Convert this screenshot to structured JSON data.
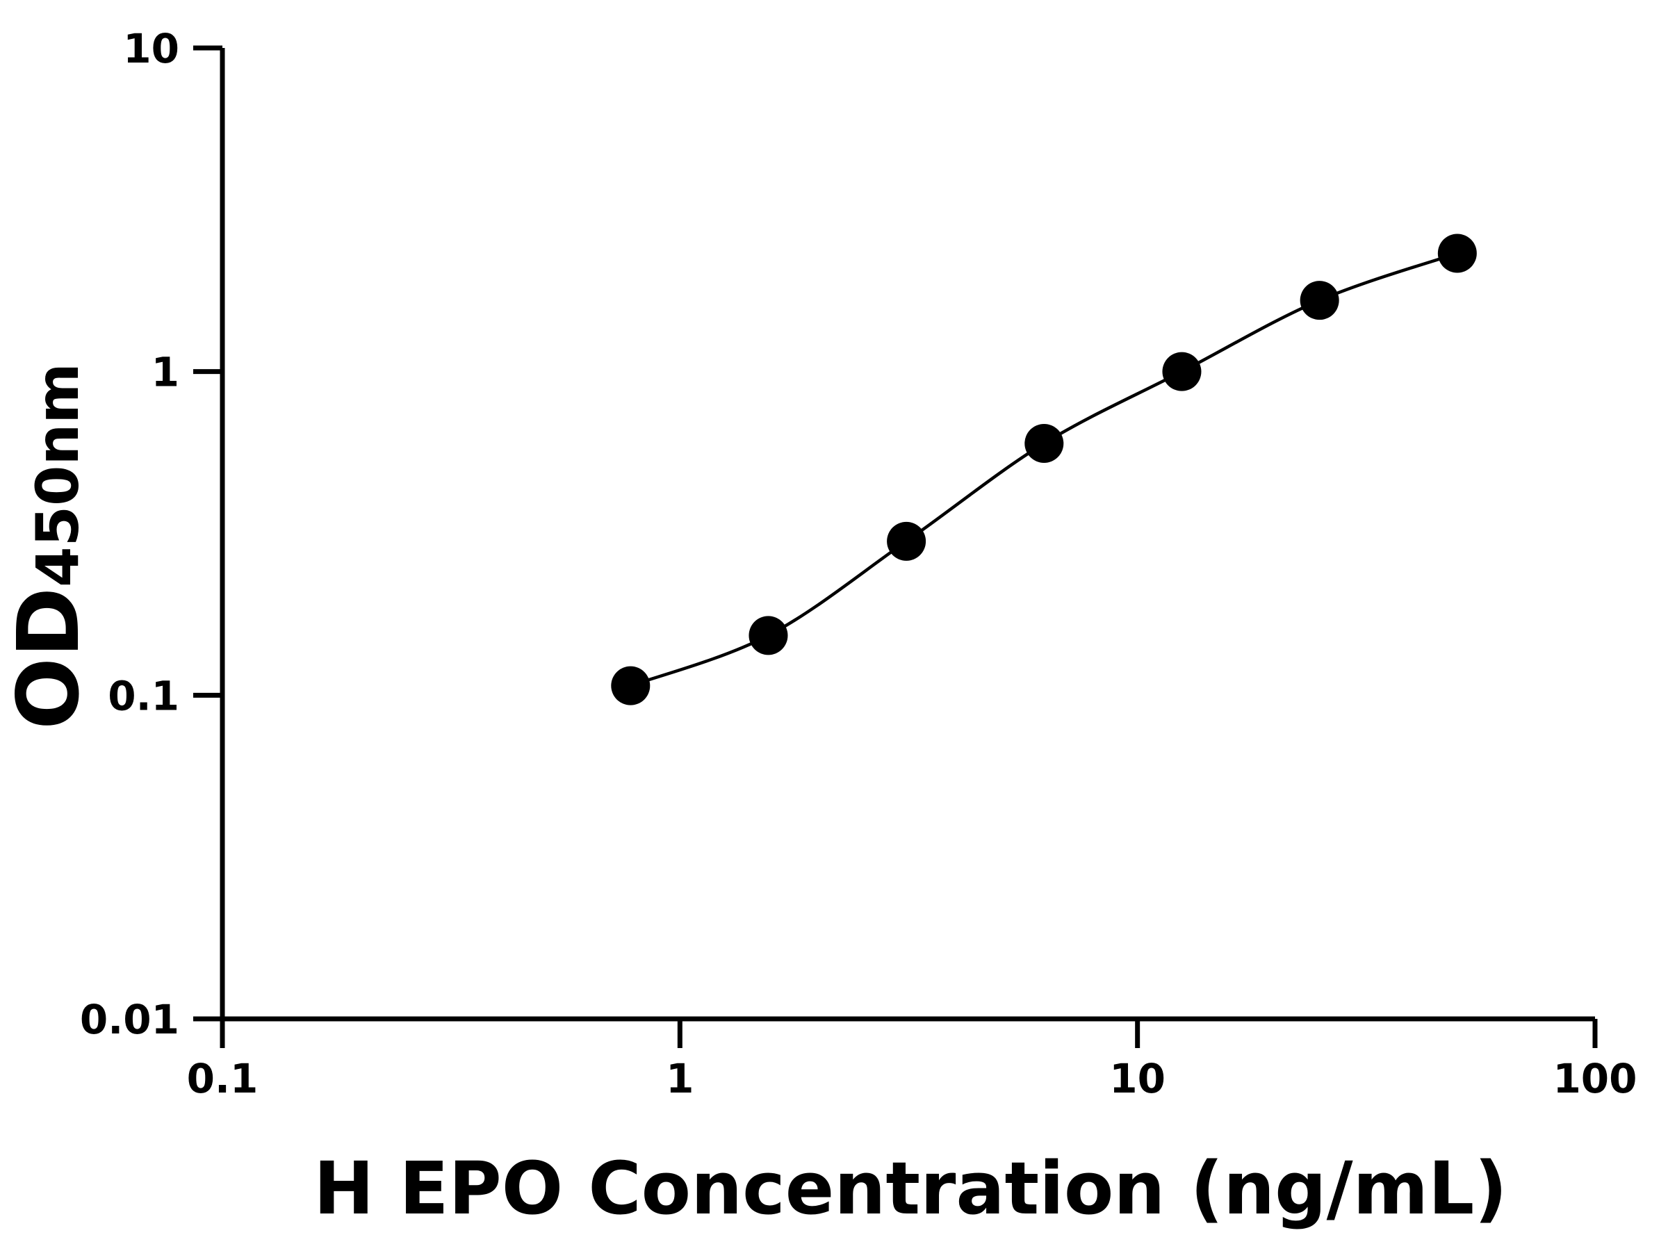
{
  "chart_data": {
    "type": "scatter",
    "x_label": "H EPO Concentration (ng/mL)",
    "y_label": "OD",
    "y_label_subscript": "450nm",
    "x_scale": "log",
    "y_scale": "log",
    "xlim": [
      0.1,
      100
    ],
    "xticks": [
      0.1,
      1,
      10,
      100
    ],
    "ylim": [
      0.01,
      10
    ],
    "yticks": [
      0.01,
      0.1,
      1,
      10
    ],
    "fit_curve": true,
    "series": [
      {
        "color": "#000000",
        "x": [
          0.78,
          1.56,
          3.125,
          6.25,
          12.5,
          25,
          50
        ],
        "values": [
          0.107,
          0.153,
          0.299,
          0.6,
          1.0,
          1.66,
          2.32
        ]
      }
    ]
  }
}
